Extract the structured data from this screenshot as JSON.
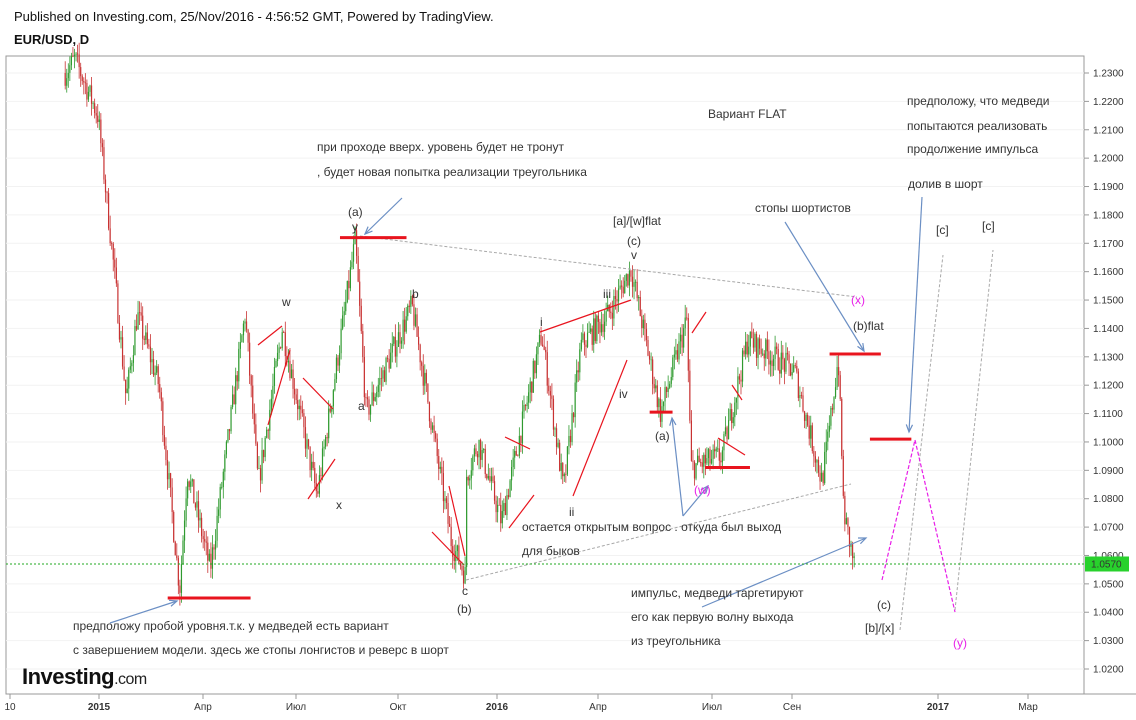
{
  "header": {
    "published": "Published on Investing.com, 25/Nov/2016 - 4:56:52 GMT, Powered by TradingView.",
    "symbol": "EUR/USD, D"
  },
  "logo": {
    "brand": "Investing",
    "suffix": ".com"
  },
  "colors": {
    "level_line": "#e8141e",
    "projection_magenta": "#e81ee8",
    "price_line": "#22a822",
    "price_badge": "#28d12c",
    "arrow_blue": "#6b8fc4",
    "dotted_gray": "#a8a8a8",
    "candle_green": "#2f9a2f",
    "candle_red": "#c83232"
  },
  "chart_data": {
    "type": "candlestick",
    "symbol": "EUR/USD",
    "timeframe": "D",
    "ylim": [
      1.015,
      1.236
    ],
    "y_ticks": [
      "1.2300",
      "1.2200",
      "1.2100",
      "1.2000",
      "1.1900",
      "1.1800",
      "1.1700",
      "1.1600",
      "1.1500",
      "1.1400",
      "1.1300",
      "1.1200",
      "1.1100",
      "1.1000",
      "1.0900",
      "1.0800",
      "1.0700",
      "1.0600",
      "1.0500",
      "1.0400",
      "1.0300",
      "1.0200"
    ],
    "x_ticks": [
      "10",
      "2015",
      "Апр",
      "Июл",
      "Окт",
      "2016",
      "Апр",
      "Июл",
      "Сен",
      "2017",
      "Мар"
    ],
    "current_price": "1.0570",
    "path_anchors": [
      {
        "date": "2014-12-01",
        "price": 1.23
      },
      {
        "date": "2014-12-10",
        "price": 1.235
      },
      {
        "date": "2014-12-31",
        "price": 1.215
      },
      {
        "date": "2015-01-15",
        "price": 1.16
      },
      {
        "date": "2015-01-26",
        "price": 1.115
      },
      {
        "date": "2015-02-05",
        "price": 1.145
      },
      {
        "date": "2015-02-25",
        "price": 1.12
      },
      {
        "date": "2015-03-05",
        "price": 1.09
      },
      {
        "date": "2015-03-16",
        "price": 1.048
      },
      {
        "date": "2015-03-23",
        "price": 1.09
      },
      {
        "date": "2015-04-13",
        "price": 1.055
      },
      {
        "date": "2015-05-15",
        "price": 1.145
      },
      {
        "date": "2015-05-27",
        "price": 1.085
      },
      {
        "date": "2015-06-18",
        "price": 1.14
      },
      {
        "date": "2015-07-20",
        "price": 1.081
      },
      {
        "date": "2015-08-24",
        "price": 1.171
      },
      {
        "date": "2015-09-03",
        "price": 1.11
      },
      {
        "date": "2015-10-15",
        "price": 1.148
      },
      {
        "date": "2015-11-20",
        "price": 1.065
      },
      {
        "date": "2015-12-03",
        "price": 1.053
      },
      {
        "date": "2015-12-04",
        "price": 1.088
      },
      {
        "date": "2015-12-15",
        "price": 1.1
      },
      {
        "date": "2016-01-05",
        "price": 1.072
      },
      {
        "date": "2016-02-11",
        "price": 1.138
      },
      {
        "date": "2016-03-02",
        "price": 1.083
      },
      {
        "date": "2016-03-18",
        "price": 1.134
      },
      {
        "date": "2016-04-12",
        "price": 1.145
      },
      {
        "date": "2016-05-03",
        "price": 1.161
      },
      {
        "date": "2016-05-30",
        "price": 1.11
      },
      {
        "date": "2016-06-23",
        "price": 1.143
      },
      {
        "date": "2016-06-27",
        "price": 1.091
      },
      {
        "date": "2016-07-25",
        "price": 1.095
      },
      {
        "date": "2016-08-18",
        "price": 1.136
      },
      {
        "date": "2016-09-30",
        "price": 1.125
      },
      {
        "date": "2016-10-25",
        "price": 1.086
      },
      {
        "date": "2016-11-01",
        "price": 1.105
      },
      {
        "date": "2016-11-09",
        "price": 1.13
      },
      {
        "date": "2016-11-14",
        "price": 1.075
      },
      {
        "date": "2016-11-24",
        "price": 1.056
      }
    ],
    "levels": [
      {
        "price": 1.045,
        "from": "2015-03-05",
        "to": "2015-05-20"
      },
      {
        "price": 1.172,
        "from": "2015-08-10",
        "to": "2015-10-10"
      },
      {
        "price": 1.1105,
        "from": "2016-05-20",
        "to": "2016-06-10"
      },
      {
        "price": 1.091,
        "from": "2016-07-10",
        "to": "2016-08-20"
      },
      {
        "price": 1.131,
        "from": "2016-11-01",
        "to": "2016-12-18"
      },
      {
        "price": 1.101,
        "from": "2016-12-08",
        "to": "2017-01-15"
      }
    ],
    "texts": {
      "variant": "Вариант  FLAT",
      "breakup_1": "при проходе вверх. уровень будет не тронут",
      "breakup_2": ", будет новая попытка реализации треугольника",
      "shortstops": "стопы шортистов",
      "bears_1": "предположу, что медведи",
      "bears_2": "попытаются реализовать",
      "bears_3": "продолжение импульса",
      "refill": "долив в шорт",
      "open_q_1": "остается открытым вопрос . откуда был выход",
      "open_q_2": "для быков",
      "impulse_1": "импульс, медведи таргетируют",
      "impulse_2": "его как первую волну выхода",
      "impulse_3": "из треугольника",
      "bottom_1": "предположу пробой уровня.т.к. у медведей есть вариант",
      "bottom_2": "с завершением модели. здесь же стопы лонгистов и реверс в шорт"
    },
    "wave_labels": {
      "a_paren_top": "(a)",
      "y": "y",
      "w": "w",
      "x_lower": "x",
      "a_small": "a",
      "b_small": "b",
      "c_small": "c",
      "b_paren": "(b)",
      "i": "i",
      "ii": "ii",
      "iii": "iii",
      "iv": "iv",
      "v": "v",
      "c_paren": "(c)",
      "aw_flat": "[a]/[w]flat",
      "a_paren_mid": "(a)",
      "w_paren": "(w)",
      "x_paren": "(x)",
      "b_flat": "(b)flat",
      "c_paren_end": "(c)",
      "bx": "[b]/[x]",
      "c_bracket_1": "[c]",
      "c_bracket_2": "[c]",
      "y_paren": "(y)"
    }
  }
}
